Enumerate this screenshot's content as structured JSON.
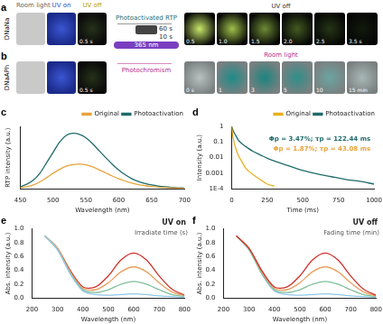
{
  "photo_section": {
    "conditions": [
      "Room light",
      "UV on",
      "UV off"
    ],
    "center": {
      "top": "Photoactivated RTP",
      "lamp": "365 nm",
      "times": [
        "60 s",
        "10 s"
      ],
      "bottom": "Photochromism"
    },
    "rows": [
      {
        "panel": "a",
        "sample": "DNaNa",
        "left_time": "0.5 s",
        "right_title": "UV off",
        "right_times": [
          "0.5",
          "1.0",
          "1.5",
          "2.0",
          "2.5",
          "3.5 s"
        ]
      },
      {
        "panel": "b",
        "sample": "DNaAPh",
        "left_time": "0.5 s",
        "right_title": "Room light",
        "right_times": [
          "0 s",
          "1",
          "3",
          "5",
          "10",
          "15 min"
        ]
      }
    ]
  },
  "chart_data": [
    {
      "panel": "c",
      "type": "line",
      "x_label": "Wavelength (nm)",
      "y_label": "RTP intensity (a.u.)",
      "x": [
        450,
        460,
        470,
        480,
        490,
        500,
        510,
        520,
        530,
        540,
        550,
        560,
        570,
        580,
        590,
        600,
        610,
        620,
        630,
        640,
        650,
        660,
        670,
        680,
        690,
        700
      ],
      "xlim": [
        450,
        700
      ],
      "xticks": [
        450,
        500,
        550,
        600,
        650,
        700
      ],
      "ylim": [
        0,
        1800
      ],
      "tick_labels": "x",
      "grid": false,
      "legend": "upper right",
      "series": [
        {
          "name": "Original",
          "color": "#e8a33c",
          "values": [
            30,
            60,
            110,
            200,
            320,
            450,
            560,
            650,
            700,
            710,
            690,
            630,
            550,
            460,
            370,
            290,
            220,
            165,
            120,
            90,
            65,
            48,
            35,
            26,
            19,
            14
          ]
        },
        {
          "name": "Photoactivation",
          "color": "#1f6b6b",
          "values": [
            60,
            130,
            250,
            450,
            750,
            1050,
            1350,
            1540,
            1600,
            1570,
            1470,
            1300,
            1100,
            900,
            710,
            540,
            400,
            290,
            210,
            150,
            110,
            80,
            58,
            42,
            30,
            22
          ]
        }
      ]
    },
    {
      "panel": "d",
      "type": "line",
      "x_label": "Time (ms)",
      "y_label": "Intensity (a.u.)",
      "x": [
        0,
        10,
        25,
        50,
        75,
        100,
        150,
        200,
        250,
        300,
        400,
        500,
        600,
        700,
        800,
        900,
        1000
      ],
      "xlim": [
        0,
        1000
      ],
      "xticks": [
        0,
        250,
        500,
        750,
        1000
      ],
      "ylim": [
        0.0001,
        1
      ],
      "yticks": [
        {
          "value": 0.0001,
          "label": "1E-4"
        },
        0.001,
        0.01,
        0.1,
        1
      ],
      "log": "y",
      "grid": false,
      "legend": "upper right",
      "annotations": [
        {
          "text": "Φp = 3.47%; τp = 122.44 ms",
          "color": "#1f6b6b"
        },
        {
          "text": "Φp = 1.87%; τp = 43.08 ms",
          "color": "#e8a33c"
        }
      ],
      "series": [
        {
          "name": "Original",
          "color": "#e8b020",
          "values": [
            1,
            0.2,
            0.05,
            0.012,
            0.005,
            0.002,
            0.0008,
            0.0004,
            0.0002,
            0.00015,
            null,
            null,
            null,
            null,
            null,
            null,
            null
          ]
        },
        {
          "name": "Photoactivation",
          "color": "#1f6b6b",
          "values": [
            1,
            0.55,
            0.3,
            0.12,
            0.075,
            0.05,
            0.025,
            0.015,
            0.009,
            0.006,
            0.003,
            0.0015,
            0.0009,
            0.0006,
            0.0004,
            0.0003,
            0.0002
          ]
        }
      ]
    },
    {
      "panel": "e",
      "type": "line",
      "title": "UV on",
      "x_label": "Wavelength (nm)",
      "y_label": "Abs. intensity (a.u.)",
      "z_label": "Irradiate time (s)",
      "x": [
        250,
        300,
        350,
        400,
        450,
        500,
        550,
        600,
        650,
        700,
        750,
        800
      ],
      "xlim": [
        200,
        800
      ],
      "xticks": [
        200,
        300,
        400,
        500,
        600,
        700,
        800
      ],
      "ylim": [
        0,
        1
      ],
      "yticks": [
        {
          "value": 0,
          "label": "0.0"
        },
        0.2,
        0.4,
        0.6,
        0.8,
        {
          "value": 1,
          "label": "1.0"
        }
      ],
      "grid": false,
      "series": [
        {
          "color": "#8fc8e8",
          "values": [
            0.9,
            0.7,
            0.35,
            0.1,
            0.05,
            0.04,
            0.05,
            0.06,
            0.05,
            0.03,
            0.02,
            0.01
          ]
        },
        {
          "color": "#7fbf9a",
          "values": [
            0.9,
            0.7,
            0.36,
            0.12,
            0.08,
            0.12,
            0.2,
            0.24,
            0.2,
            0.12,
            0.05,
            0.02
          ]
        },
        {
          "color": "#e8a060",
          "values": [
            0.9,
            0.72,
            0.38,
            0.14,
            0.12,
            0.22,
            0.38,
            0.45,
            0.38,
            0.22,
            0.09,
            0.03
          ]
        },
        {
          "color": "#d0302a",
          "values": [
            0.9,
            0.72,
            0.4,
            0.16,
            0.16,
            0.32,
            0.55,
            0.65,
            0.55,
            0.32,
            0.13,
            0.04
          ]
        }
      ]
    },
    {
      "panel": "f",
      "type": "line",
      "title": "UV off",
      "x_label": "Wavelength (nm)",
      "y_label": "Abs. intensity (a.u.)",
      "z_label": "Fading time (min)",
      "x": [
        250,
        300,
        350,
        400,
        450,
        500,
        550,
        600,
        650,
        700,
        750,
        800
      ],
      "xlim": [
        200,
        800
      ],
      "xticks": [
        200,
        300,
        400,
        500,
        600,
        700,
        800
      ],
      "ylim": [
        0,
        1
      ],
      "yticks": [
        {
          "value": 0,
          "label": "0.0"
        },
        0.2,
        0.4,
        0.6,
        0.8,
        {
          "value": 1,
          "label": "1.0"
        }
      ],
      "grid": false,
      "series": [
        {
          "color": "#d0302a",
          "values": [
            0.9,
            0.72,
            0.4,
            0.16,
            0.16,
            0.32,
            0.55,
            0.65,
            0.55,
            0.32,
            0.13,
            0.04
          ]
        },
        {
          "color": "#e8a060",
          "values": [
            0.9,
            0.72,
            0.38,
            0.14,
            0.12,
            0.22,
            0.38,
            0.45,
            0.38,
            0.22,
            0.09,
            0.03
          ]
        },
        {
          "color": "#7fbf9a",
          "values": [
            0.9,
            0.7,
            0.36,
            0.12,
            0.08,
            0.12,
            0.2,
            0.24,
            0.2,
            0.12,
            0.05,
            0.02
          ]
        },
        {
          "color": "#8fc8e8",
          "values": [
            0.9,
            0.7,
            0.35,
            0.1,
            0.05,
            0.04,
            0.05,
            0.06,
            0.05,
            0.03,
            0.02,
            0.01
          ]
        }
      ]
    }
  ]
}
